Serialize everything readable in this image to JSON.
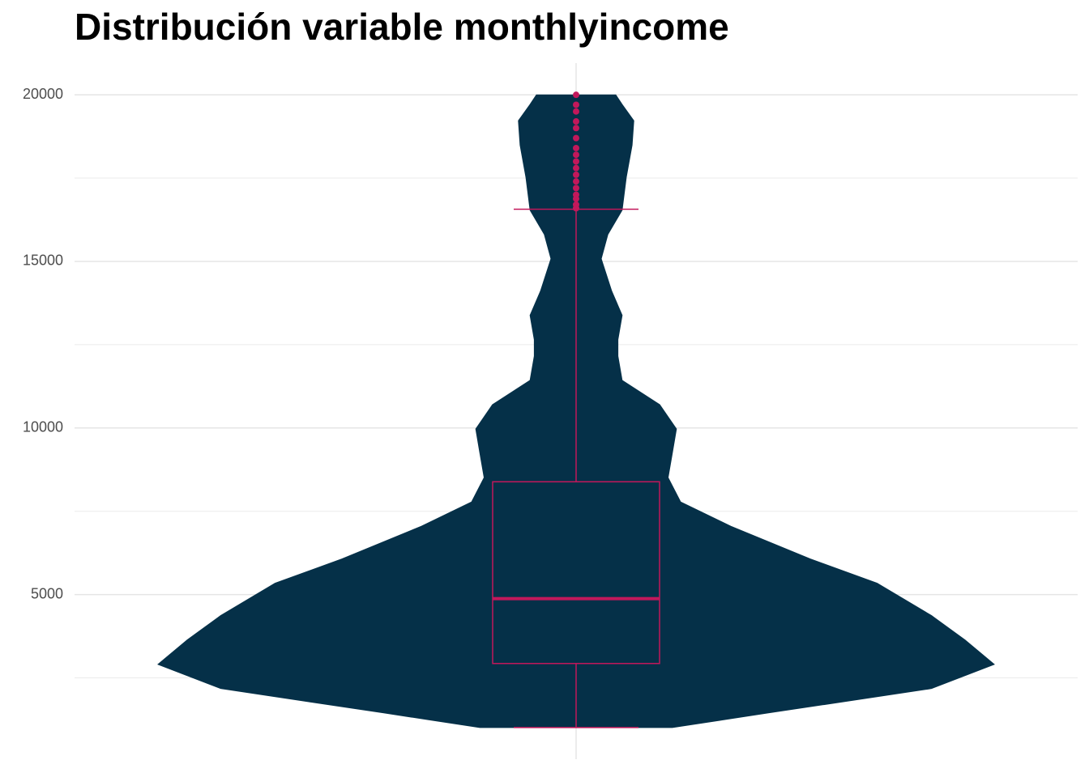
{
  "chart_data": {
    "type": "violin",
    "title": "Distribución variable monthlyincome",
    "ylim": [
      60,
      20950
    ],
    "yticks": [
      5000,
      10000,
      15000,
      20000
    ],
    "minor_yticks": [
      2500,
      7500,
      12500,
      17500
    ],
    "grid": true,
    "violin_color": "#053048",
    "box_color": "#c2185b",
    "violin": {
      "y": [
        1009,
        1450,
        2180,
        2907,
        3640,
        4370,
        5340,
        6070,
        7050,
        7780,
        8510,
        9240,
        9970,
        10700,
        11430,
        12160,
        12650,
        13380,
        14110,
        15080,
        15810,
        16540,
        17520,
        18490,
        19220,
        19710,
        19999
      ],
      "width": [
        0.23,
        0.46,
        0.85,
        1.0,
        0.93,
        0.85,
        0.72,
        0.56,
        0.37,
        0.25,
        0.22,
        0.23,
        0.24,
        0.2,
        0.11,
        0.1,
        0.1,
        0.11,
        0.085,
        0.06,
        0.076,
        0.11,
        0.12,
        0.134,
        0.138,
        0.11,
        0.095
      ]
    },
    "box": {
      "min": 1009,
      "q1": 2932,
      "median": 4880,
      "q3": 8386,
      "upper_whisker": 16567
    },
    "outliers": [
      16595,
      16704,
      16880,
      17000,
      17200,
      17400,
      17600,
      17800,
      18000,
      18200,
      18400,
      18700,
      19000,
      19200,
      19500,
      19700,
      19999
    ]
  }
}
